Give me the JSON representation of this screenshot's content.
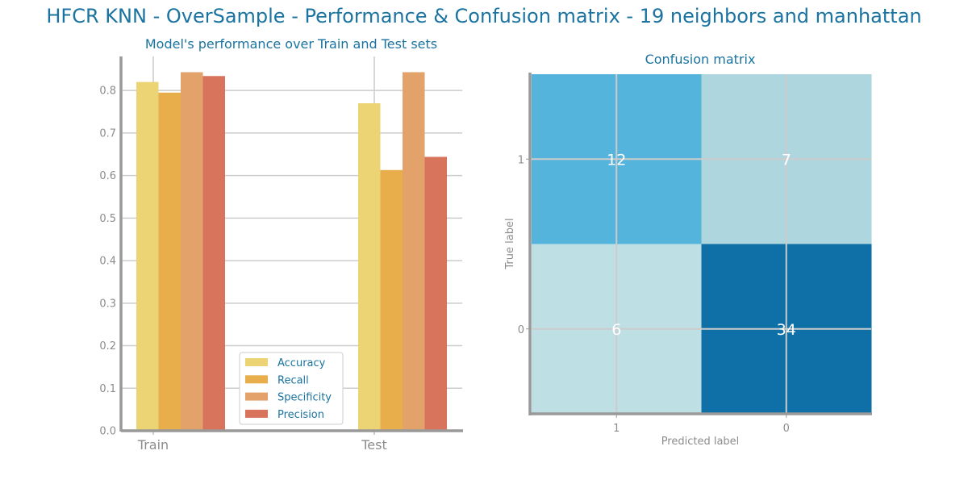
{
  "suptitle": "HFCR KNN - OverSample - Performance & Confusion matrix - 19 neighbors and manhattan",
  "chart_data": [
    {
      "type": "bar",
      "title": "Model's performance over Train and Test sets",
      "xlabel": "",
      "ylabel": "",
      "categories": [
        "Train",
        "Test"
      ],
      "ylim": [
        0,
        0.88
      ],
      "yticks": [
        "0.0",
        "0.1",
        "0.2",
        "0.3",
        "0.4",
        "0.5",
        "0.6",
        "0.7",
        "0.8"
      ],
      "grid": true,
      "legend_position": "bottom-center",
      "series": [
        {
          "name": "Accuracy",
          "color": "#ecd474",
          "values": [
            0.82,
            0.77
          ]
        },
        {
          "name": "Recall",
          "color": "#e8ae4c",
          "values": [
            0.795,
            0.613
          ]
        },
        {
          "name": "Specificity",
          "color": "#e2a26a",
          "values": [
            0.843,
            0.843
          ]
        },
        {
          "name": "Precision",
          "color": "#d9745c",
          "values": [
            0.834,
            0.644
          ]
        }
      ]
    },
    {
      "type": "heatmap",
      "title": "Confusion matrix",
      "xlabel": "Predicted label",
      "ylabel": "True label",
      "x_categories": [
        "1",
        "0"
      ],
      "y_categories": [
        "1",
        "0"
      ],
      "grid": true,
      "matrix": [
        [
          12,
          7
        ],
        [
          6,
          34
        ]
      ],
      "cell_colors": [
        [
          "#54b4dc",
          "#add6df"
        ],
        [
          "#bedfe3",
          "#0e70a6"
        ]
      ]
    }
  ]
}
